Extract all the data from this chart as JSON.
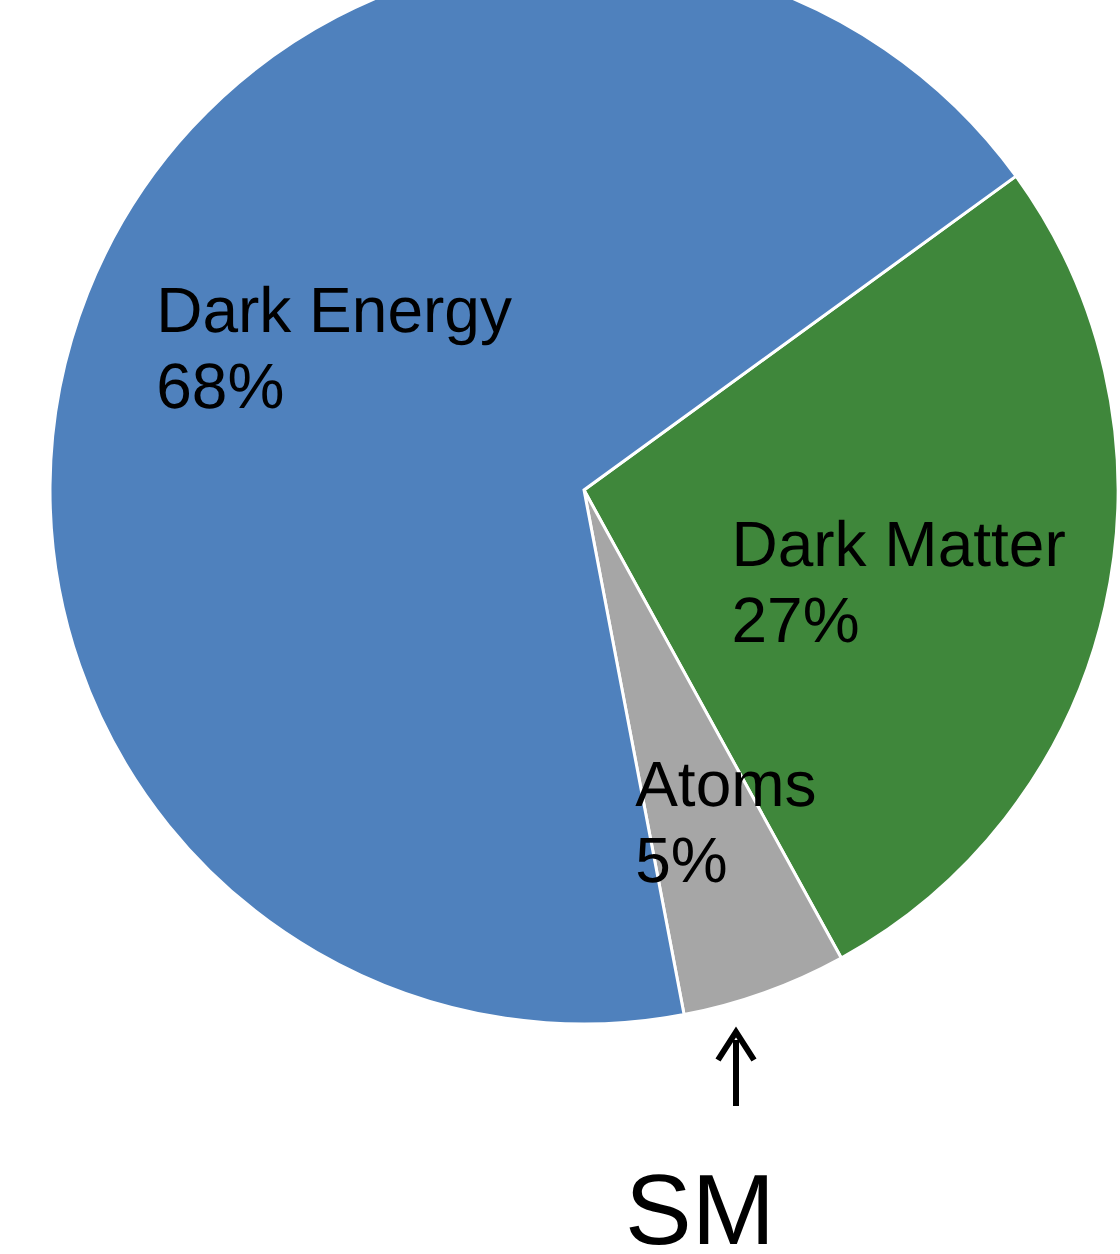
{
  "chart_data": {
    "type": "pie",
    "categories": [
      "Dark Matter",
      "Atoms",
      "Dark Energy"
    ],
    "values": [
      27,
      5,
      68
    ],
    "value_labels": [
      "27%",
      "5%",
      "68%"
    ],
    "colors": [
      "#3f873b",
      "#a6a6a6",
      "#4f81bd"
    ],
    "annotations": [
      "SM"
    ]
  }
}
